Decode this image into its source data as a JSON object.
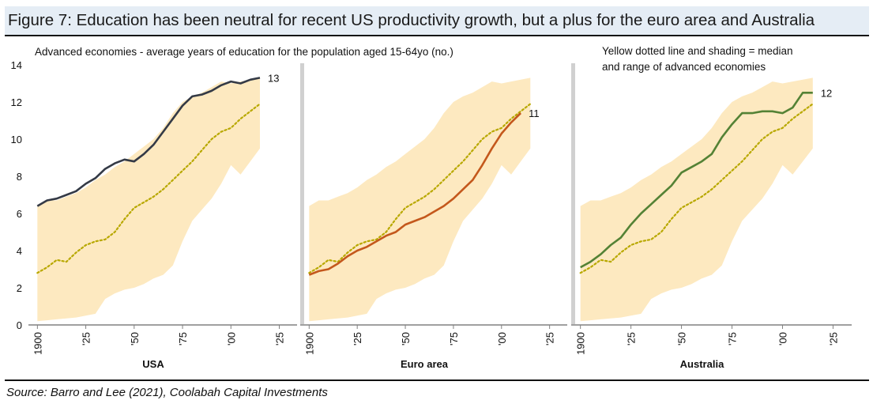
{
  "figure": {
    "title": "Figure 7: Education has been neutral for recent US productivity growth, but a plus for the euro area and Australia",
    "source": "Source: Barro and Lee (2021), Coolabah Capital Investments"
  },
  "chart_data": {
    "type": "line",
    "subtitle": "Advanced economies - average years of education for the population aged 15-64yo (no.)",
    "annotation": "Yellow dotted line and shading = median and range of advanced economies",
    "ylim": [
      0,
      14
    ],
    "y_ticks": [
      "0",
      "2",
      "4",
      "6",
      "8",
      "10",
      "12",
      "14"
    ],
    "xlim": [
      1897,
      2035
    ],
    "x_ticks": [
      {
        "year": 1900,
        "label": "1900"
      },
      {
        "year": 1925,
        "label": "'25"
      },
      {
        "year": 1950,
        "label": "'50"
      },
      {
        "year": 1975,
        "label": "'75"
      },
      {
        "year": 2000,
        "label": "'00"
      },
      {
        "year": 2025,
        "label": "'25"
      }
    ],
    "colors": {
      "band": "#fde9c0",
      "median": "#b8a800",
      "usa": "#343a46",
      "euro": "#c4581c",
      "australia": "#548235",
      "axis": "#808080",
      "divider": "#d0d0d0"
    },
    "shared": {
      "x": [
        1900,
        1905,
        1910,
        1915,
        1920,
        1925,
        1930,
        1935,
        1940,
        1945,
        1950,
        1955,
        1960,
        1965,
        1970,
        1975,
        1980,
        1985,
        1990,
        1995,
        2000,
        2005,
        2010,
        2015
      ],
      "median": [
        2.8,
        3.1,
        3.5,
        3.4,
        3.9,
        4.3,
        4.5,
        4.6,
        5.0,
        5.7,
        6.3,
        6.6,
        6.9,
        7.3,
        7.8,
        8.3,
        8.8,
        9.4,
        10.0,
        10.4,
        10.6,
        11.1,
        11.5,
        11.9
      ],
      "band_upper": [
        6.4,
        6.7,
        6.7,
        6.9,
        7.1,
        7.4,
        7.8,
        8.1,
        8.5,
        8.8,
        9.2,
        9.6,
        10.0,
        10.6,
        11.4,
        12.0,
        12.3,
        12.5,
        12.8,
        13.1,
        13.0,
        13.1,
        13.2,
        13.3
      ],
      "band_lower": [
        0.2,
        0.25,
        0.3,
        0.35,
        0.4,
        0.5,
        0.6,
        1.4,
        1.7,
        1.9,
        2.0,
        2.2,
        2.5,
        2.7,
        3.2,
        4.5,
        5.6,
        6.2,
        6.8,
        7.6,
        8.6,
        8.1,
        8.8,
        9.5
      ]
    },
    "panels": [
      {
        "name": "USA",
        "label": "USA",
        "end_label": "13",
        "color_key": "usa",
        "x": [
          1900,
          1905,
          1910,
          1915,
          1920,
          1925,
          1930,
          1935,
          1940,
          1945,
          1950,
          1955,
          1960,
          1965,
          1970,
          1975,
          1980,
          1985,
          1990,
          1995,
          2000,
          2005,
          2010,
          2015
        ],
        "values": [
          6.4,
          6.7,
          6.8,
          7.0,
          7.2,
          7.6,
          7.9,
          8.4,
          8.7,
          8.9,
          8.8,
          9.2,
          9.7,
          10.4,
          11.1,
          11.8,
          12.3,
          12.4,
          12.6,
          12.9,
          13.1,
          13.0,
          13.2,
          13.3
        ]
      },
      {
        "name": "Euro area",
        "label": "Euro area",
        "end_label": "11",
        "color_key": "euro",
        "x": [
          1900,
          1905,
          1910,
          1915,
          1920,
          1925,
          1930,
          1935,
          1940,
          1945,
          1950,
          1955,
          1960,
          1965,
          1970,
          1975,
          1980,
          1985,
          1990,
          1995,
          2000,
          2005,
          2010
        ],
        "values": [
          2.7,
          2.9,
          3.0,
          3.3,
          3.7,
          4.0,
          4.2,
          4.5,
          4.8,
          5.0,
          5.4,
          5.6,
          5.8,
          6.1,
          6.4,
          6.8,
          7.3,
          7.8,
          8.6,
          9.5,
          10.3,
          10.9,
          11.4
        ]
      },
      {
        "name": "Australia",
        "label": "Australia",
        "end_label": "12",
        "color_key": "australia",
        "x": [
          1900,
          1905,
          1910,
          1915,
          1920,
          1925,
          1930,
          1935,
          1940,
          1945,
          1950,
          1955,
          1960,
          1965,
          1970,
          1975,
          1980,
          1985,
          1990,
          1995,
          2000,
          2005,
          2010,
          2015
        ],
        "values": [
          3.1,
          3.4,
          3.8,
          4.3,
          4.7,
          5.4,
          6.0,
          6.5,
          7.0,
          7.5,
          8.2,
          8.5,
          8.8,
          9.2,
          10.1,
          10.8,
          11.4,
          11.4,
          11.5,
          11.5,
          11.4,
          11.7,
          12.5,
          12.5
        ]
      }
    ]
  }
}
